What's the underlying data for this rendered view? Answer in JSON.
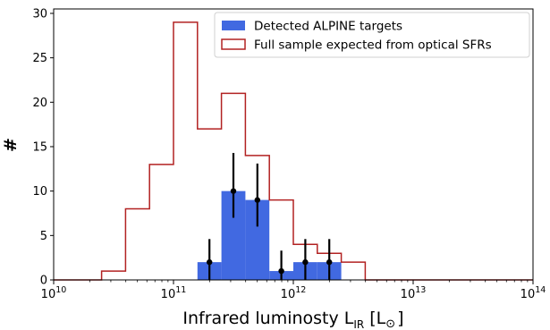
{
  "chart_data": {
    "type": "bar",
    "title": "",
    "xlabel_main": "Infrared luminosty L",
    "xlabel_sub": "IR",
    "xlabel_unit": "[L",
    "xlabel_sun": "⊙",
    "xlabel_close": "]",
    "ylabel": "#",
    "x_scale": "log",
    "xlim": [
      10000000000.0,
      100000000000000.0
    ],
    "ylim": [
      0,
      30.5
    ],
    "x_ticks": [
      {
        "value": 10000000000.0,
        "base": "10",
        "exp": "10"
      },
      {
        "value": 100000000000.0,
        "base": "10",
        "exp": "11"
      },
      {
        "value": 1000000000000.0,
        "base": "10",
        "exp": "12"
      },
      {
        "value": 10000000000000.0,
        "base": "10",
        "exp": "13"
      },
      {
        "value": 100000000000000.0,
        "base": "10",
        "exp": "14"
      }
    ],
    "y_ticks": [
      0,
      5,
      10,
      15,
      20,
      25,
      30
    ],
    "bin_edges_log": [
      10.0,
      10.4,
      10.6,
      10.8,
      11.0,
      11.2,
      11.4,
      11.6,
      11.8,
      12.0,
      12.2,
      12.4,
      12.6,
      12.8,
      13.0,
      13.2,
      13.4,
      13.6,
      13.8,
      14.0
    ],
    "legend_position": "top-right",
    "series": [
      {
        "name": "Detected ALPINE targets",
        "style": "filled",
        "color": "#4169e1",
        "bins": [
          {
            "lo": 11.2,
            "hi": 11.4,
            "value": 2
          },
          {
            "lo": 11.4,
            "hi": 11.6,
            "value": 10
          },
          {
            "lo": 11.6,
            "hi": 11.8,
            "value": 9
          },
          {
            "lo": 11.8,
            "hi": 12.0,
            "value": 1
          },
          {
            "lo": 12.0,
            "hi": 12.2,
            "value": 2
          },
          {
            "lo": 12.2,
            "hi": 12.4,
            "value": 2
          }
        ],
        "errorbars": [
          {
            "x_log": 11.3,
            "y": 2,
            "lo": 0,
            "hi": 4.6
          },
          {
            "x_log": 11.5,
            "y": 10,
            "lo": 7,
            "hi": 14.3
          },
          {
            "x_log": 11.7,
            "y": 9,
            "lo": 6,
            "hi": 13.1
          },
          {
            "x_log": 11.9,
            "y": 1,
            "lo": 0,
            "hi": 3.3
          },
          {
            "x_log": 12.1,
            "y": 2,
            "lo": 0,
            "hi": 4.6
          },
          {
            "x_log": 12.3,
            "y": 2,
            "lo": 0,
            "hi": 4.6
          }
        ]
      },
      {
        "name": "Full sample expected from optical SFRs",
        "style": "step",
        "color": "#b22222",
        "values": [
          0,
          1,
          8,
          13,
          29,
          17,
          21,
          14,
          9,
          4,
          3,
          2,
          0,
          0,
          0,
          0,
          0,
          0,
          0
        ]
      }
    ]
  }
}
